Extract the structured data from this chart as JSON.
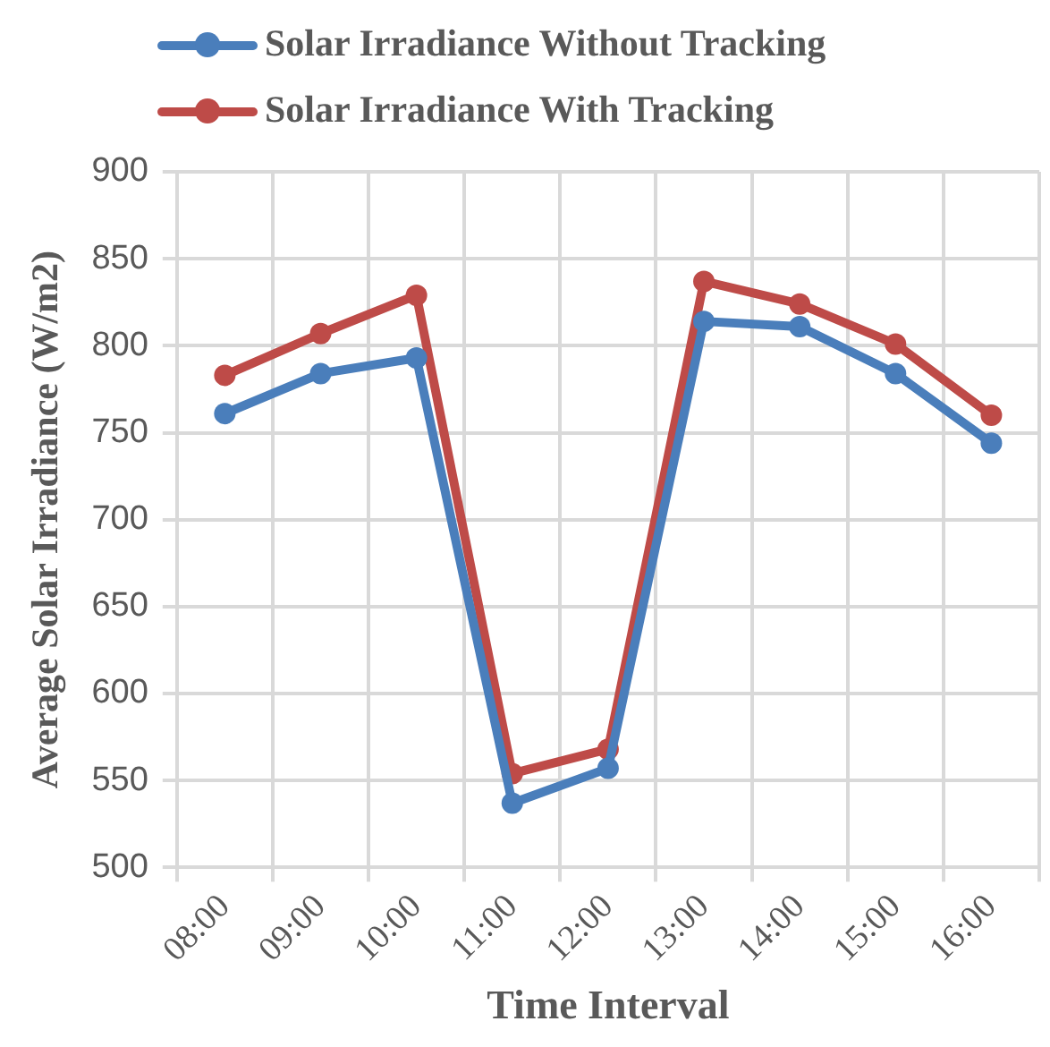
{
  "chart_data": {
    "type": "line",
    "xlabel": "Time Interval",
    "ylabel": "Average Solar Irradiance (W/m2)",
    "categories": [
      "08:00",
      "09:00",
      "10:00",
      "11:00",
      "12:00",
      "13:00",
      "14:00",
      "15:00",
      "16:00"
    ],
    "series": [
      {
        "name": "Solar Irradiance Without Tracking",
        "color": "#4a7ebb",
        "values": [
          761,
          784,
          793,
          537,
          557,
          814,
          811,
          784,
          744
        ]
      },
      {
        "name": "Solar Irradiance With Tracking",
        "color": "#be4b48",
        "values": [
          783,
          807,
          829,
          554,
          568,
          837,
          824,
          801,
          760
        ]
      }
    ],
    "ylim": [
      500,
      900
    ],
    "yticks": [
      500,
      550,
      600,
      650,
      700,
      750,
      800,
      850,
      900
    ],
    "grid": true,
    "legend": "top",
    "marker": "circle",
    "line_style": "solid"
  }
}
